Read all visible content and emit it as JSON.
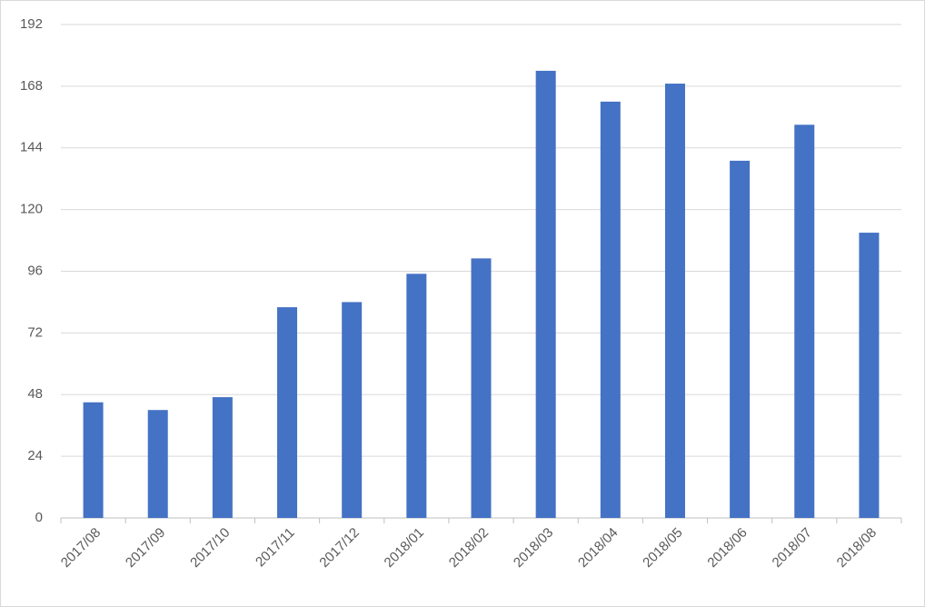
{
  "chart_data": {
    "type": "bar",
    "categories": [
      "2017/08",
      "2017/09",
      "2017/10",
      "2017/11",
      "2017/12",
      "2018/01",
      "2018/02",
      "2018/03",
      "2018/04",
      "2018/05",
      "2018/06",
      "2018/07",
      "2018/08"
    ],
    "values": [
      45,
      42,
      47,
      82,
      84,
      95,
      101,
      174,
      162,
      169,
      139,
      153,
      111
    ],
    "color": "#4472c4",
    "ylim": [
      0,
      192
    ],
    "yticks": [
      0,
      24,
      48,
      72,
      96,
      120,
      144,
      168,
      192
    ],
    "grid": true
  }
}
